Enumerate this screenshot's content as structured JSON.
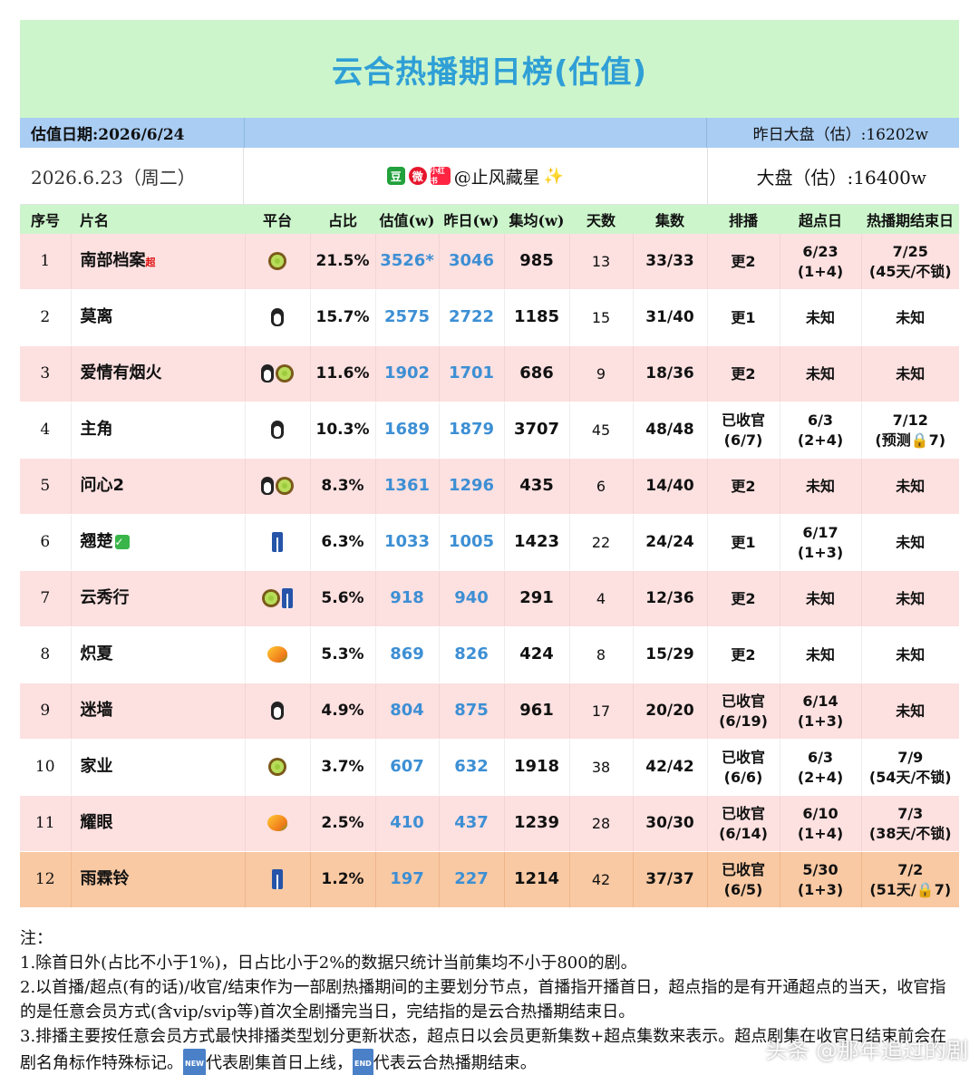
{
  "title": "云合热播期日榜(估值)",
  "info": {
    "date_label": "估值日期:2026/6/24",
    "yday_market": "昨日大盘（估）:16202w"
  },
  "sub": {
    "date": "2026.6.23（周二）",
    "account": "@止风藏星",
    "market": "大盘（估）:16400w"
  },
  "headers": [
    "序号",
    "片名",
    "平台",
    "占比",
    "估值(w)",
    "昨日(w)",
    "集均(w)",
    "天数",
    "集数",
    "排播",
    "超点日",
    "热播期结束日"
  ],
  "rows": [
    {
      "idx": "1",
      "name": "南部档案",
      "sup": "超",
      "check": false,
      "platforms": [
        "kiwi"
      ],
      "share": "21.5%",
      "est": "3526*",
      "yday": "3046",
      "avg": "985",
      "days": "13",
      "eps": "33/33",
      "sched": "更2",
      "peak": [
        "6/23",
        "(1+4)"
      ],
      "end": [
        "7/25",
        "(45天/不锁)"
      ],
      "style": "pink"
    },
    {
      "idx": "2",
      "name": "莫离",
      "sup": "",
      "check": false,
      "platforms": [
        "penguin"
      ],
      "share": "15.7%",
      "est": "2575",
      "yday": "2722",
      "avg": "1185",
      "days": "15",
      "eps": "31/40",
      "sched": "更1",
      "peak": [
        "未知"
      ],
      "end": [
        "未知"
      ],
      "style": "white"
    },
    {
      "idx": "3",
      "name": "爱情有烟火",
      "sup": "",
      "check": false,
      "platforms": [
        "penguin",
        "kiwi"
      ],
      "share": "11.6%",
      "est": "1902",
      "yday": "1701",
      "avg": "686",
      "days": "9",
      "eps": "18/36",
      "sched": "更2",
      "peak": [
        "未知"
      ],
      "end": [
        "未知"
      ],
      "style": "pink"
    },
    {
      "idx": "4",
      "name": "主角",
      "sup": "",
      "check": false,
      "platforms": [
        "penguin"
      ],
      "share": "10.3%",
      "est": "1689",
      "yday": "1879",
      "avg": "3707",
      "days": "45",
      "eps": "48/48",
      "sched": [
        "已收官",
        "(6/7)"
      ],
      "peak": [
        "6/3",
        "(2+4)"
      ],
      "end": [
        "7/12",
        "(预测🔒7)"
      ],
      "style": "white"
    },
    {
      "idx": "5",
      "name": "问心2",
      "sup": "",
      "check": false,
      "platforms": [
        "penguin",
        "kiwi"
      ],
      "share": "8.3%",
      "est": "1361",
      "yday": "1296",
      "avg": "435",
      "days": "6",
      "eps": "14/40",
      "sched": "更2",
      "peak": [
        "未知"
      ],
      "end": [
        "未知"
      ],
      "style": "pink"
    },
    {
      "idx": "6",
      "name": "翘楚",
      "sup": "",
      "check": true,
      "platforms": [
        "jeans"
      ],
      "share": "6.3%",
      "est": "1033",
      "yday": "1005",
      "avg": "1423",
      "days": "22",
      "eps": "24/24",
      "sched": "更1",
      "peak": [
        "6/17",
        "(1+3)"
      ],
      "end": [
        "未知"
      ],
      "style": "white"
    },
    {
      "idx": "7",
      "name": "云秀行",
      "sup": "",
      "check": false,
      "platforms": [
        "kiwi",
        "jeans"
      ],
      "share": "5.6%",
      "est": "918",
      "yday": "940",
      "avg": "291",
      "days": "4",
      "eps": "12/36",
      "sched": "更2",
      "peak": [
        "未知"
      ],
      "end": [
        "未知"
      ],
      "style": "pink"
    },
    {
      "idx": "8",
      "name": "炽夏",
      "sup": "",
      "check": false,
      "platforms": [
        "mango"
      ],
      "share": "5.3%",
      "est": "869",
      "yday": "826",
      "avg": "424",
      "days": "8",
      "eps": "15/29",
      "sched": "更2",
      "peak": [
        "未知"
      ],
      "end": [
        "未知"
      ],
      "style": "white"
    },
    {
      "idx": "9",
      "name": "迷墙",
      "sup": "",
      "check": false,
      "platforms": [
        "penguin"
      ],
      "share": "4.9%",
      "est": "804",
      "yday": "875",
      "avg": "961",
      "days": "17",
      "eps": "20/20",
      "sched": [
        "已收官",
        "(6/19)"
      ],
      "peak": [
        "6/14",
        "(1+3)"
      ],
      "end": [
        "未知"
      ],
      "style": "pink"
    },
    {
      "idx": "10",
      "name": "家业",
      "sup": "",
      "check": false,
      "platforms": [
        "kiwi"
      ],
      "share": "3.7%",
      "est": "607",
      "yday": "632",
      "avg": "1918",
      "days": "38",
      "eps": "42/42",
      "sched": [
        "已收官",
        "(6/6)"
      ],
      "peak": [
        "6/3",
        "(2+4)"
      ],
      "end": [
        "7/9",
        "(54天/不锁)"
      ],
      "style": "white"
    },
    {
      "idx": "11",
      "name": "耀眼",
      "sup": "",
      "check": false,
      "platforms": [
        "mango"
      ],
      "share": "2.5%",
      "est": "410",
      "yday": "437",
      "avg": "1239",
      "days": "28",
      "eps": "30/30",
      "sched": [
        "已收官",
        "(6/14)"
      ],
      "peak": [
        "6/10",
        "(1+4)"
      ],
      "end": [
        "7/3",
        "(38天/不锁)"
      ],
      "style": "pink"
    },
    {
      "idx": "12",
      "name": "雨霖铃",
      "sup": "",
      "check": false,
      "platforms": [
        "jeans"
      ],
      "share": "1.2%",
      "est": "197",
      "yday": "227",
      "avg": "1214",
      "days": "42",
      "eps": "37/37",
      "sched": [
        "已收官",
        "(6/5)"
      ],
      "peak": [
        "5/30",
        "(1+3)"
      ],
      "end": [
        "7/2",
        "(51天/🔒7)"
      ],
      "style": "orange"
    }
  ],
  "notes": {
    "head": "注：",
    "n1": "1.除首日外(占比不小于1%)，日占比小于2%的数据只统计当前集均不小于800的剧。",
    "n2": "2.以首播/超点(有的话)/收官/结束作为一部剧热播期间的主要划分节点，首播指开播首日，超点指的是有开通超点的当天，收官指的是任意会员方式(含vip/svip等)首次全剧播完当日，完结指的是云合热播期结束日。",
    "n3a": "3.排播主要按任意会员方式最快排播类型划分更新状态，超点日以会员更新集数+超点集数来表示。超点剧集在收官日结束前会在剧名角标作特殊标记。",
    "n3b": "代表剧集首日上线，",
    "n3c": "代表云合热播期结束。",
    "tag_new": "NEW",
    "tag_end": "END"
  },
  "watermark": "头条 @那年追过的剧",
  "icons": {
    "kiwi": "kiwi-icon",
    "penguin": "penguin-icon",
    "jeans": "jeans-icon",
    "mango": "mango-icon"
  },
  "colors": {
    "title": "#2f9fd6",
    "header_bg": "#ccf5cc",
    "info_bg": "#a9cdf3",
    "row_pink": "#fde0e0",
    "row_orange": "#f9c9a3",
    "value_blue": "#3d8fd4"
  }
}
